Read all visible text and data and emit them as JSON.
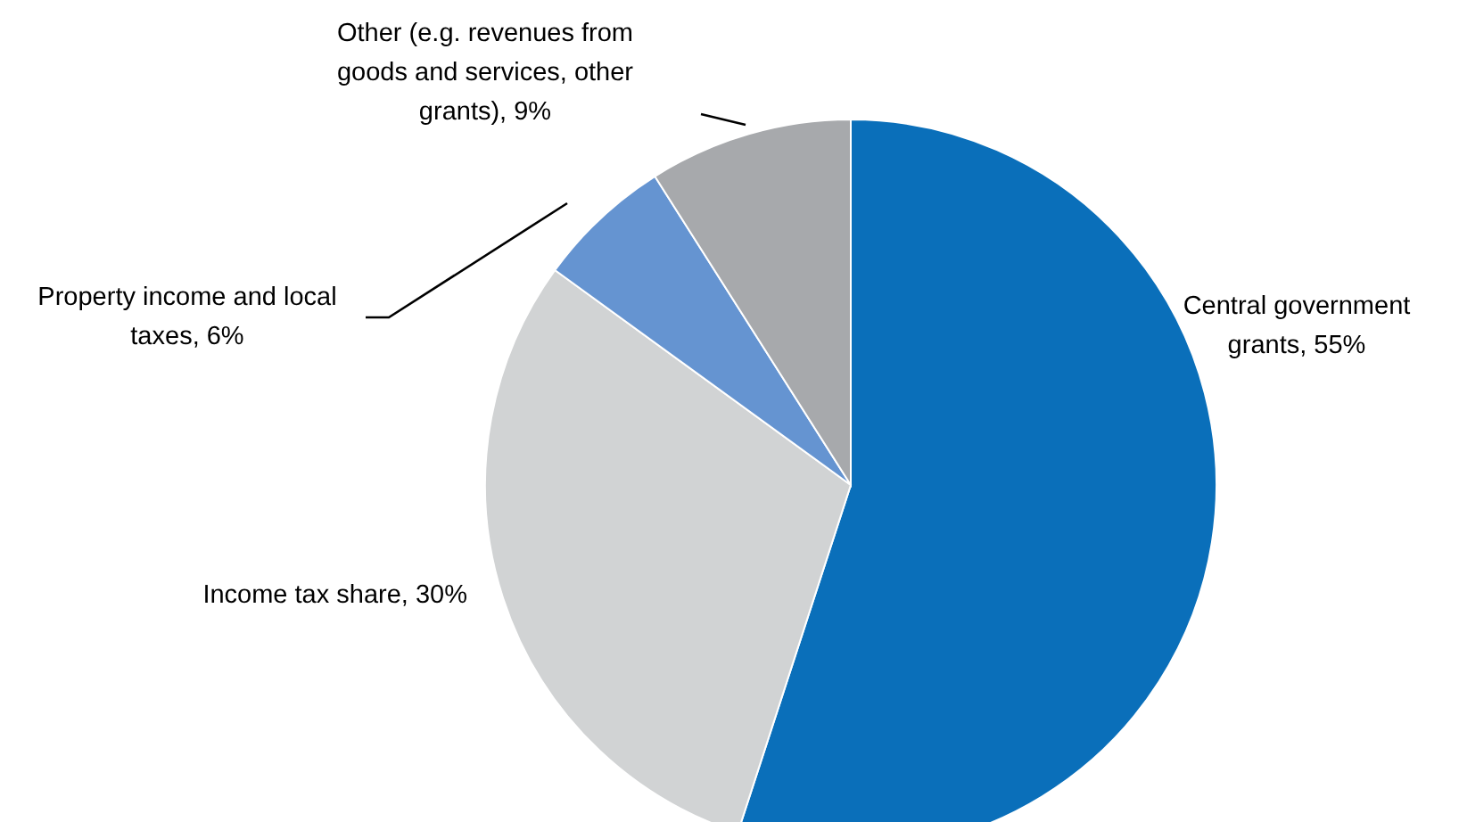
{
  "chart_data": {
    "type": "pie",
    "categories": [
      "Central government grants",
      "Income tax share",
      "Property income and local taxes",
      "Other (e.g. revenues from goods and services, other grants)"
    ],
    "values": [
      55,
      30,
      6,
      9
    ],
    "value_labels": [
      "55%",
      "30%",
      "6%",
      "9%"
    ],
    "colors": [
      "#0a6fba",
      "#d1d3d4",
      "#6594d1",
      "#a7a9ac"
    ],
    "legend": false
  }
}
